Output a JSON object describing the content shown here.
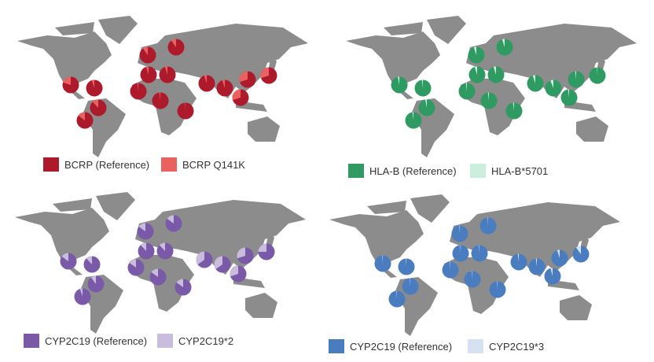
{
  "map_color": "#8c8c8c",
  "chart_data": [
    {
      "type": "pie-map",
      "legend": [
        {
          "label": "BCRP (Reference)",
          "color": "#ad1a2c"
        },
        {
          "label": "BCRP Q141K",
          "color": "#ea625f"
        }
      ],
      "variant_fractions": [
        0.2,
        0.05,
        0.12,
        0.15,
        0.1,
        0.1,
        0.05,
        0.05,
        0.02,
        0.02,
        0.01,
        0.05,
        0.05,
        0.3,
        0.3,
        0.3
      ]
    },
    {
      "type": "pie-map",
      "legend": [
        {
          "label": "HLA-B (Reference)",
          "color": "#2f9a62"
        },
        {
          "label": "HLA-B*5701",
          "color": "#cdeedc"
        }
      ],
      "variant_fractions": [
        0.03,
        0.02,
        0.03,
        0.02,
        0.05,
        0.05,
        0.05,
        0.05,
        0.02,
        0.02,
        0.02,
        0.05,
        0.06,
        0.02,
        0.02,
        0.01
      ]
    },
    {
      "type": "pie-map",
      "legend": [
        {
          "label": "CYP2C19 (Reference)",
          "color": "#7a59a8"
        },
        {
          "label": "CYP2C19*2",
          "color": "#c9bcdd"
        }
      ],
      "variant_fractions": [
        0.15,
        0.12,
        0.1,
        0.05,
        0.15,
        0.15,
        0.12,
        0.12,
        0.15,
        0.15,
        0.15,
        0.35,
        0.35,
        0.3,
        0.3,
        0.25
      ]
    },
    {
      "type": "pie-map",
      "legend": [
        {
          "label": "CYP2C19 (Reference)",
          "color": "#4a7cc0"
        },
        {
          "label": "CYP2C19*3",
          "color": "#d5e2f2"
        }
      ],
      "variant_fractions": [
        0.01,
        0.01,
        0.01,
        0.01,
        0.01,
        0.01,
        0.01,
        0.01,
        0.01,
        0.01,
        0.01,
        0.02,
        0.02,
        0.05,
        0.04,
        0.1
      ]
    }
  ]
}
